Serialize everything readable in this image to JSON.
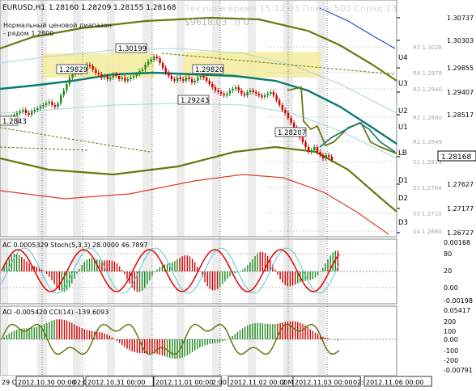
{
  "header": {
    "symbol": "EURUSD,H1",
    "ohlc": "1.28160 1.28209 1.28155 1.28168",
    "status_line": "Текущее время 15:12:03 Плечо:500 Спрэд:13",
    "balance": "$9618.03",
    "ratio": "// 0",
    "channel_note_1": "Нормальный ценовой диапазон",
    "channel_note_2": "- рядом 1.2800"
  },
  "price_labels": [
    "1.29829",
    "1.30199",
    "1.29820",
    "1.29243",
    "1.28207",
    "1.2843"
  ],
  "level_labels": [
    "U4",
    "U3",
    "U2",
    "U1",
    "LB",
    "D1",
    "D2",
    "D3"
  ],
  "pivot_labels": [
    "R5 1.3028",
    "R4 1.2978",
    "R3 1.2940",
    "R2 1.2880",
    "R1 1.2849",
    "S1 1.2819",
    "S2 1.2784",
    "S3 1.2710",
    "S4 1.2680"
  ],
  "main_axis": {
    "ticks": [
      "1.30737",
      "1.30303",
      "1.29855",
      "1.29407",
      "1.28517",
      "1.28168",
      "1.27627",
      "1.27177",
      "1.26727"
    ],
    "current_price": "1.28168"
  },
  "ac_panel": {
    "label": "AC 0.0005329  Stoch(5,3,3) 28.0000 46.7897",
    "ticks": [
      "0.00168",
      "80",
      "20",
      "0.00",
      "-0.00198"
    ]
  },
  "ao_panel": {
    "label": "AO -0.005420  CCI(14) -139.6093",
    "ticks": [
      "0.05417",
      "200",
      "100",
      "0.00",
      "-100",
      "-200",
      "-0.00791"
    ]
  },
  "time_axis": [
    "29 O",
    "2012.10.30 00:00",
    "02:0",
    "2012.10.31 00:00",
    "2012.11.01 00:00",
    "2:00",
    "2012.11.02 00:00",
    "2 M",
    "2012.11.03 00:00",
    "02:00",
    "2012.11.06 00:00"
  ],
  "colors": {
    "bull": "#1f8a1f",
    "bear": "#d00000",
    "ma": "#0b7a72",
    "channel": "#6b8e00",
    "red_line": "#e23a2a",
    "blue_line": "#2f3fd0",
    "zone": "#f5eb9c",
    "olive": "#667a10"
  }
}
